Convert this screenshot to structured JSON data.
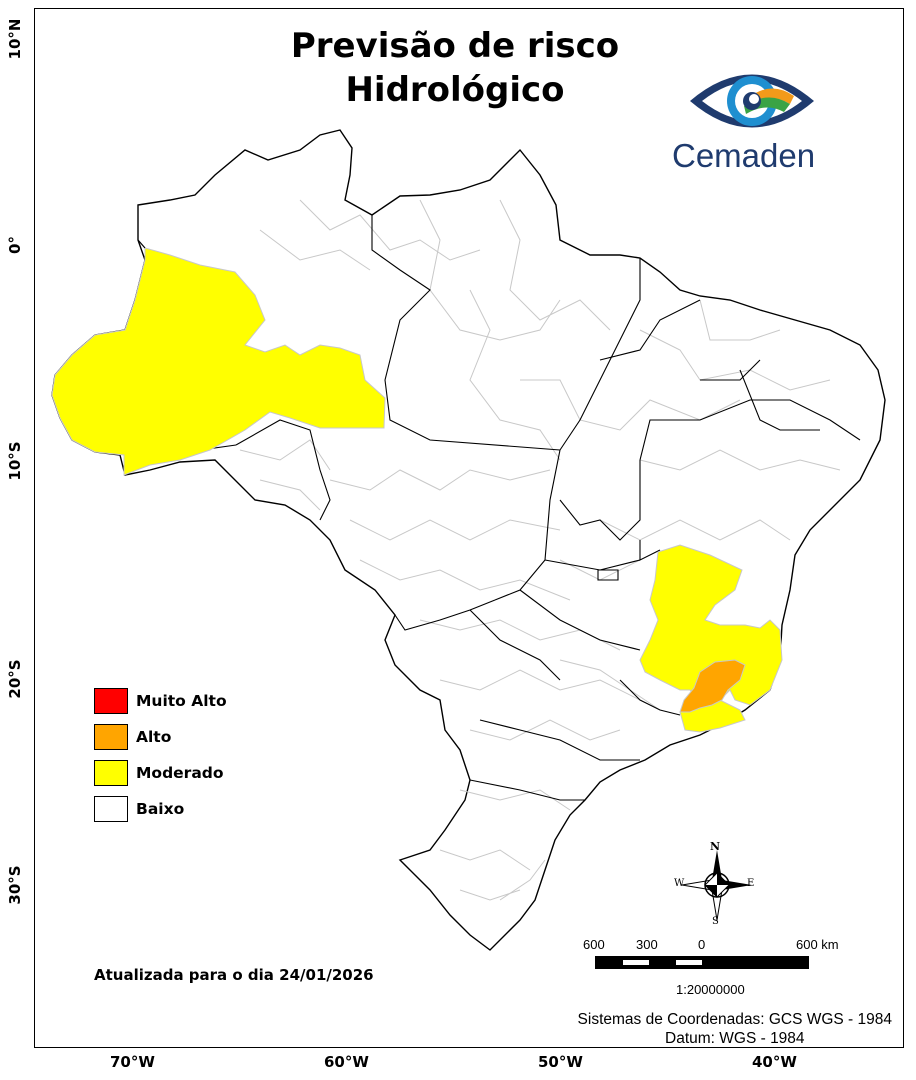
{
  "map": {
    "title_line1": "Previsão de risco",
    "title_line2": "Hidrológico",
    "logo_text": "Cemaden",
    "colors": {
      "muito_alto": "#ff0000",
      "alto": "#ffa500",
      "moderado": "#ffff00",
      "baixo": "#ffffff"
    },
    "legend": [
      {
        "label": "Muito Alto",
        "color": "#ff0000"
      },
      {
        "label": "Alto",
        "color": "#ffa500"
      },
      {
        "label": "Moderado",
        "color": "#ffff00"
      },
      {
        "label": "Baixo",
        "color": "#ffffff"
      }
    ],
    "lat_labels": [
      "10°N",
      "0°",
      "10°S",
      "20°S",
      "30°S"
    ],
    "lon_labels": [
      "70°W",
      "60°W",
      "50°W",
      "40°W"
    ],
    "updated": "Atualizada para o dia 24/01/2026",
    "crs_line1": "Sistemas de Coordenadas: GCS WGS - 1984",
    "crs_line2": "Datum: WGS - 1984",
    "scale": {
      "labels": [
        "600",
        "300",
        "0",
        "600 km"
      ],
      "ratio": "1:20000000"
    },
    "compass": {
      "n": "N",
      "s": "S",
      "e": "E",
      "w": "W"
    }
  }
}
